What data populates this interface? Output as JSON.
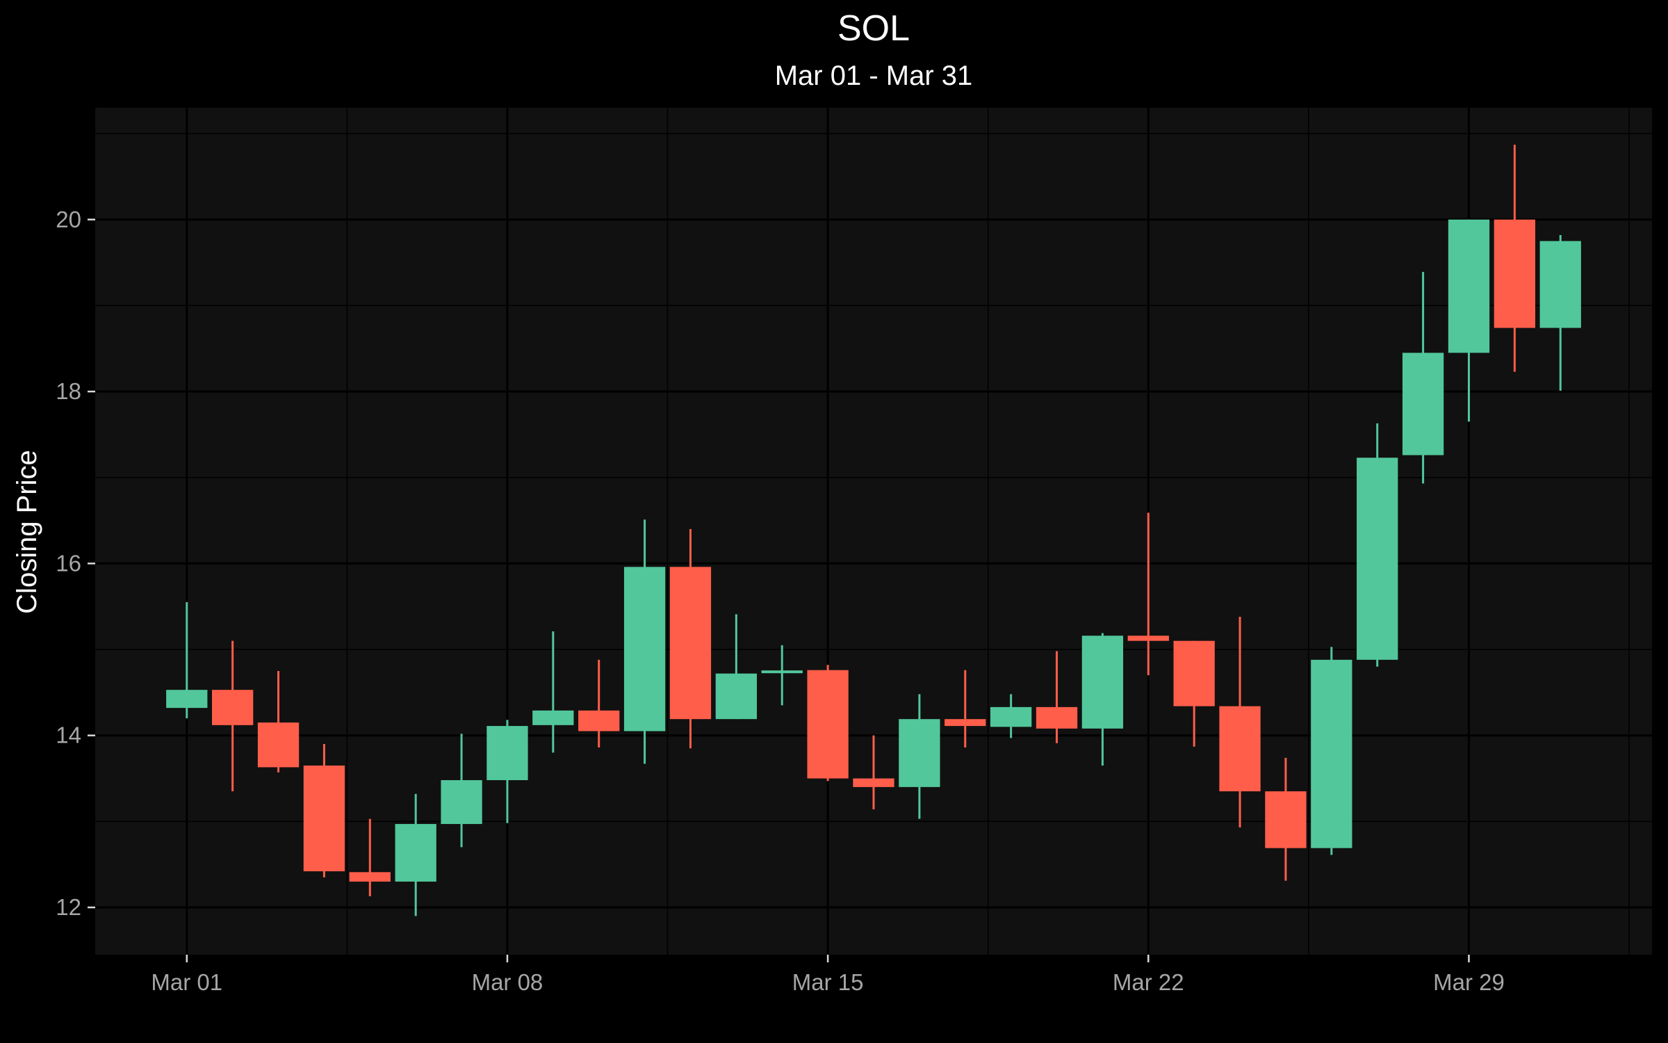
{
  "chart_data": {
    "type": "candlestick",
    "title": "SOL",
    "subtitle": "Mar 01 - Mar 31",
    "xlabel": "",
    "ylabel": "Closing Price",
    "x_tick_labels": [
      "Mar 01",
      "Mar 08",
      "Mar 15",
      "Mar 22",
      "Mar 29"
    ],
    "x_tick_days": [
      1,
      8,
      15,
      22,
      29
    ],
    "y_ticks": [
      12,
      14,
      16,
      18,
      20
    ],
    "xlim": [
      -1,
      33
    ],
    "ylim": [
      11.45,
      21.3
    ],
    "grid": true,
    "colors": {
      "background": "#000000",
      "panel": "#111111",
      "grid_major": "#000000",
      "grid_minor": "#000000",
      "up": "#52c79c",
      "down": "#ff5e4a",
      "tick_text": "#a6a6a6",
      "text": "#ffffff"
    },
    "candles": [
      {
        "date": "Mar 01",
        "open": 14.32,
        "high": 15.55,
        "low": 14.2,
        "close": 14.53
      },
      {
        "date": "Mar 02",
        "open": 14.53,
        "high": 15.1,
        "low": 13.35,
        "close": 14.12
      },
      {
        "date": "Mar 03",
        "open": 14.15,
        "high": 14.75,
        "low": 13.57,
        "close": 13.63
      },
      {
        "date": "Mar 04",
        "open": 13.65,
        "high": 13.9,
        "low": 12.35,
        "close": 12.42
      },
      {
        "date": "Mar 05",
        "open": 12.41,
        "high": 13.03,
        "low": 12.13,
        "close": 12.3
      },
      {
        "date": "Mar 06",
        "open": 12.3,
        "high": 13.32,
        "low": 11.9,
        "close": 12.97
      },
      {
        "date": "Mar 07",
        "open": 12.97,
        "high": 14.02,
        "low": 12.7,
        "close": 13.48
      },
      {
        "date": "Mar 08",
        "open": 13.48,
        "high": 14.18,
        "low": 12.98,
        "close": 14.11
      },
      {
        "date": "Mar 09",
        "open": 14.12,
        "high": 15.21,
        "low": 13.8,
        "close": 14.29
      },
      {
        "date": "Mar 10",
        "open": 14.29,
        "high": 14.88,
        "low": 13.86,
        "close": 14.05
      },
      {
        "date": "Mar 11",
        "open": 14.05,
        "high": 16.51,
        "low": 13.67,
        "close": 15.96
      },
      {
        "date": "Mar 12",
        "open": 15.96,
        "high": 16.4,
        "low": 13.85,
        "close": 14.19
      },
      {
        "date": "Mar 13",
        "open": 14.19,
        "high": 15.41,
        "low": 14.19,
        "close": 14.72
      },
      {
        "date": "Mar 14",
        "open": 14.74,
        "high": 15.05,
        "low": 14.35,
        "close": 14.74
      },
      {
        "date": "Mar 15",
        "open": 14.76,
        "high": 14.82,
        "low": 13.47,
        "close": 13.5
      },
      {
        "date": "Mar 16",
        "open": 13.5,
        "high": 14.0,
        "low": 13.14,
        "close": 13.4
      },
      {
        "date": "Mar 17",
        "open": 13.4,
        "high": 14.48,
        "low": 13.03,
        "close": 14.19
      },
      {
        "date": "Mar 18",
        "open": 14.19,
        "high": 14.76,
        "low": 13.86,
        "close": 14.11
      },
      {
        "date": "Mar 19",
        "open": 14.1,
        "high": 14.48,
        "low": 13.97,
        "close": 14.33
      },
      {
        "date": "Mar 20",
        "open": 14.33,
        "high": 14.98,
        "low": 13.91,
        "close": 14.08
      },
      {
        "date": "Mar 21",
        "open": 14.08,
        "high": 15.19,
        "low": 13.65,
        "close": 15.16
      },
      {
        "date": "Mar 22",
        "open": 15.16,
        "high": 16.59,
        "low": 14.7,
        "close": 15.1
      },
      {
        "date": "Mar 23",
        "open": 15.1,
        "high": 15.1,
        "low": 13.87,
        "close": 14.34
      },
      {
        "date": "Mar 24",
        "open": 14.34,
        "high": 15.38,
        "low": 12.93,
        "close": 13.35
      },
      {
        "date": "Mar 25",
        "open": 13.35,
        "high": 13.74,
        "low": 12.31,
        "close": 12.69
      },
      {
        "date": "Mar 26",
        "open": 12.69,
        "high": 15.03,
        "low": 12.61,
        "close": 14.88
      },
      {
        "date": "Mar 27",
        "open": 14.88,
        "high": 17.63,
        "low": 14.8,
        "close": 17.23
      },
      {
        "date": "Mar 28",
        "open": 17.26,
        "high": 19.39,
        "low": 16.93,
        "close": 18.45
      },
      {
        "date": "Mar 29",
        "open": 18.45,
        "high": 20.0,
        "low": 17.65,
        "close": 20.0
      },
      {
        "date": "Mar 30",
        "open": 20.0,
        "high": 20.87,
        "low": 18.23,
        "close": 18.74
      },
      {
        "date": "Mar 31",
        "open": 18.74,
        "high": 19.82,
        "low": 18.01,
        "close": 19.75
      }
    ]
  }
}
